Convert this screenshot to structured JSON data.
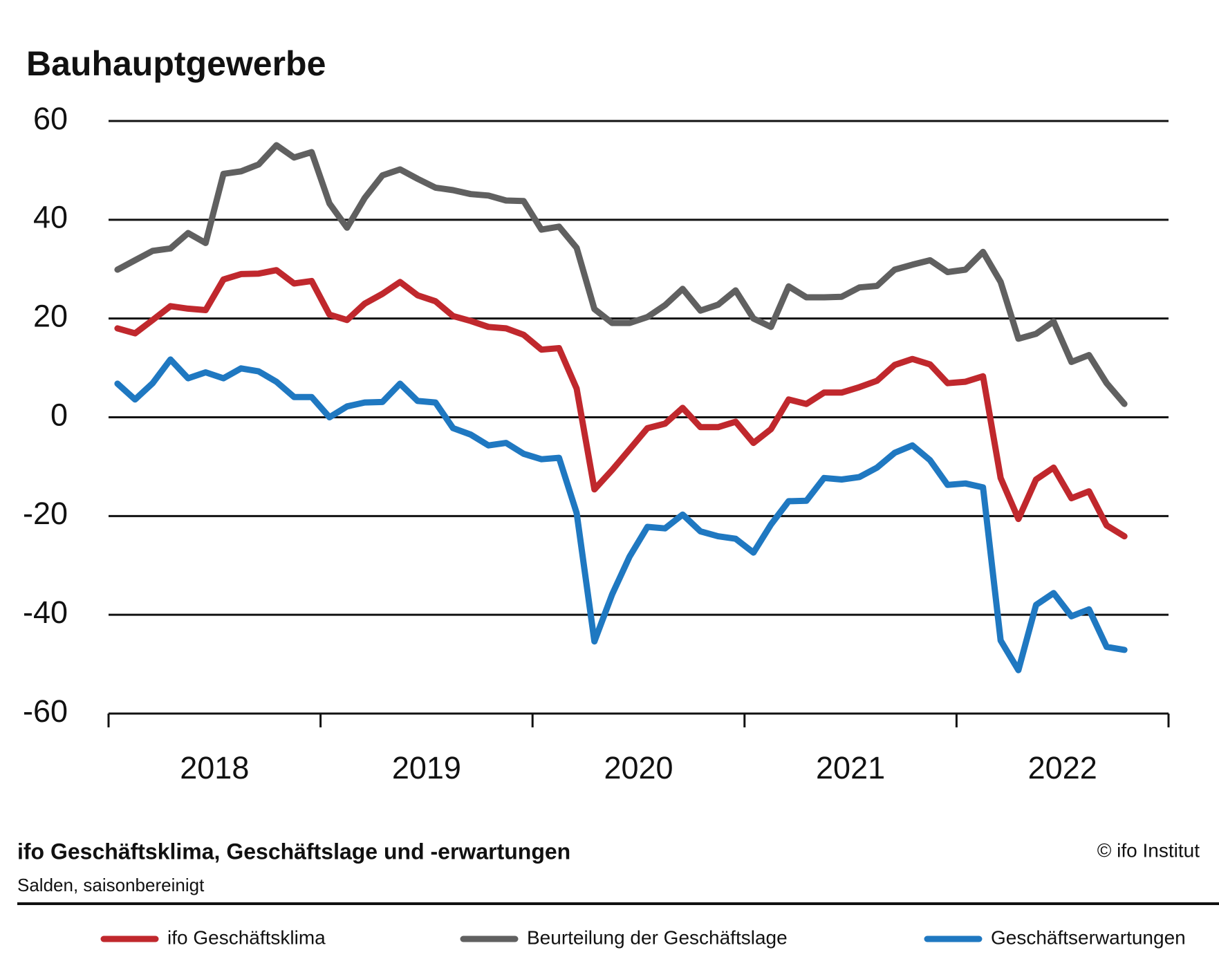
{
  "chart_data": {
    "type": "line",
    "title": "Bauhauptgewerbe",
    "footer_title": "ifo Geschäftsklima, Geschäftslage und -erwartungen",
    "subtitle": "Salden, saisonbereinigt",
    "source": "© ifo Institut",
    "x": [
      2018.042,
      2018.125,
      2018.208,
      2018.292,
      2018.375,
      2018.458,
      2018.542,
      2018.625,
      2018.708,
      2018.792,
      2018.875,
      2018.958,
      2019.042,
      2019.125,
      2019.208,
      2019.292,
      2019.375,
      2019.458,
      2019.542,
      2019.625,
      2019.708,
      2019.792,
      2019.875,
      2019.958,
      2020.042,
      2020.125,
      2020.208,
      2020.292,
      2020.375,
      2020.458,
      2020.542,
      2020.625,
      2020.708,
      2020.792,
      2020.875,
      2020.958,
      2021.042,
      2021.125,
      2021.208,
      2021.292,
      2021.375,
      2021.458,
      2021.542,
      2021.625,
      2021.708,
      2021.792,
      2021.875,
      2021.958,
      2022.042,
      2022.125,
      2022.208,
      2022.292,
      2022.375,
      2022.458,
      2022.542,
      2022.625,
      2022.708,
      2022.792
    ],
    "xlim": [
      2018,
      2023
    ],
    "xticks": [
      2018,
      2019,
      2020,
      2021,
      2022,
      2023
    ],
    "year_labels": [
      2018,
      2019,
      2020,
      2021,
      2022
    ],
    "ylim": [
      -60,
      60
    ],
    "yticks": [
      -60,
      -40,
      -20,
      0,
      20,
      40,
      60
    ],
    "grid": true,
    "series": [
      {
        "name": "ifo Geschäftsklima",
        "color": "#c0282d",
        "values": [
          18.0,
          17.0,
          19.7,
          22.5,
          22.0,
          21.7,
          27.9,
          29.0,
          29.1,
          29.8,
          27.1,
          27.6,
          20.8,
          19.7,
          23.0,
          25.0,
          27.4,
          24.7,
          23.5,
          20.5,
          19.5,
          18.3,
          18.0,
          16.7,
          13.7,
          14.0,
          5.8,
          -14.6,
          -10.7,
          -6.5,
          -2.2,
          -1.3,
          1.9,
          -2.0,
          -2.0,
          -0.9,
          -5.2,
          -2.4,
          3.6,
          2.7,
          5.0,
          5.0,
          6.1,
          7.4,
          10.6,
          11.8,
          10.7,
          6.9,
          7.2,
          8.3,
          -12.3,
          -20.6,
          -12.6,
          -10.2,
          -16.4,
          -15.0,
          -21.9,
          -24.1
        ]
      },
      {
        "name": "Beurteilung der Geschäftslage",
        "color": "#606060",
        "values": [
          29.9,
          31.8,
          33.7,
          34.2,
          37.3,
          35.3,
          49.3,
          49.8,
          51.2,
          55.1,
          52.6,
          53.7,
          43.3,
          38.4,
          44.4,
          49.0,
          50.2,
          48.3,
          46.5,
          46.0,
          45.2,
          44.9,
          43.9,
          43.8,
          38.0,
          38.6,
          34.3,
          21.9,
          19.1,
          19.1,
          20.3,
          22.7,
          26.0,
          21.6,
          22.8,
          25.7,
          20.0,
          18.3,
          26.5,
          24.3,
          24.3,
          24.4,
          26.3,
          26.6,
          29.9,
          30.9,
          31.8,
          29.4,
          29.9,
          33.5,
          27.4,
          15.9,
          16.9,
          19.4,
          11.2,
          12.6,
          6.9,
          2.7
        ]
      },
      {
        "name": "Geschäftserwartungen",
        "color": "#1f78c1",
        "values": [
          6.8,
          3.6,
          6.9,
          11.7,
          7.9,
          9.1,
          7.9,
          9.9,
          9.3,
          7.2,
          4.1,
          4.1,
          0,
          2.2,
          3.0,
          3.1,
          6.8,
          3.3,
          3.0,
          -2.2,
          -3.5,
          -5.7,
          -5.2,
          -7.4,
          -8.5,
          -8.2,
          -19.4,
          -45.4,
          -35.9,
          -28.2,
          -22.2,
          -22.5,
          -19.7,
          -23.1,
          -24.1,
          -24.6,
          -27.4,
          -21.7,
          -17.0,
          -16.9,
          -12.3,
          -12.6,
          -12.1,
          -10.2,
          -7.2,
          -5.7,
          -8.7,
          -13.7,
          -13.4,
          -14.2,
          -45.2,
          -51.2,
          -38.0,
          -35.6,
          -40.3,
          -38.9,
          -46.5,
          -47.1
        ]
      }
    ]
  }
}
